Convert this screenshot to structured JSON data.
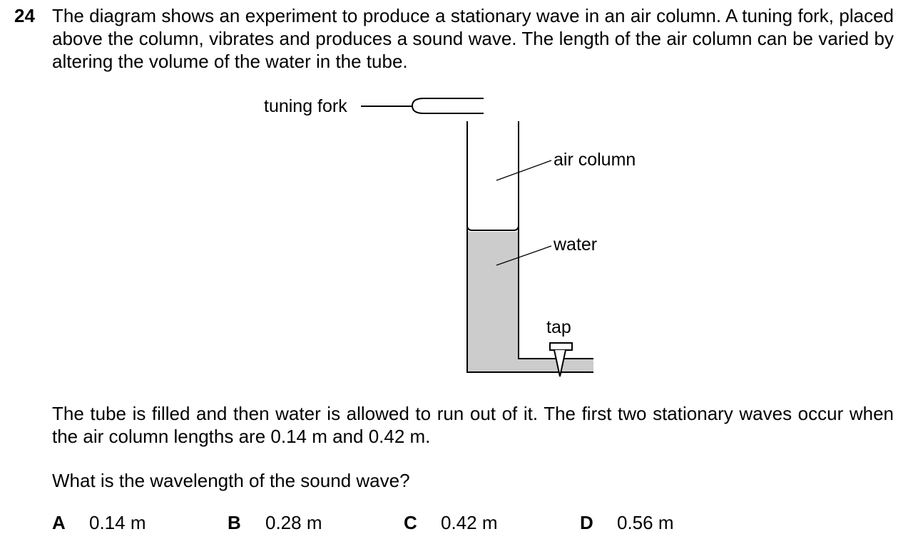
{
  "question": {
    "number": "24",
    "intro": "The diagram shows an experiment to produce a stationary wave in an air column. A tuning fork, placed above the column, vibrates and produces a sound wave. The length of the air column can be varied by altering the volume of the water in the tube.",
    "body": "The tube is filled and then water is allowed to run out of it. The first two stationary waves occur when the air column lengths are 0.14 m and 0.42 m.",
    "prompt": "What is the wavelength of the sound wave?"
  },
  "diagram": {
    "labels": {
      "tuning_fork": "tuning fork",
      "air_column": "air column",
      "water": "water",
      "tap": "tap"
    },
    "colors": {
      "water_fill": "#cccccc",
      "line": "#000000"
    }
  },
  "options": [
    {
      "letter": "A",
      "value": "0.14 m"
    },
    {
      "letter": "B",
      "value": "0.28 m"
    },
    {
      "letter": "C",
      "value": "0.42 m"
    },
    {
      "letter": "D",
      "value": "0.56 m"
    }
  ]
}
